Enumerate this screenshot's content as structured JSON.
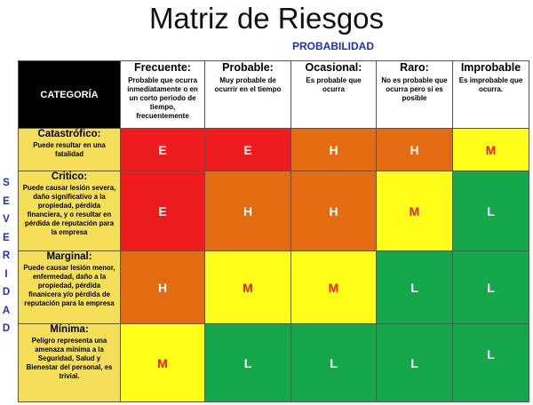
{
  "title": "Matriz de Riesgos",
  "probability_label": "PROBABILIDAD",
  "severity_letters": [
    "S",
    "E",
    "V",
    "E",
    "R",
    "I",
    "D",
    "A",
    "D"
  ],
  "category_header": "CATEGORÍA",
  "columns": [
    {
      "title": "Frecuente:",
      "desc": "Probable que ocurra inmediatamente o en un corto periodo de tiempo, frecuentemente"
    },
    {
      "title": "Probable:",
      "desc": "Muy probable de ocurrir en el tiempo"
    },
    {
      "title": "Ocasional:",
      "desc": "Es probable que ocurra"
    },
    {
      "title": "Raro:",
      "desc": "No es probable que ocurra pero si es posible"
    },
    {
      "title": "Improbable",
      "desc": "Es improbable que ocurra."
    }
  ],
  "rows": [
    {
      "title": "Catastrófico:",
      "desc": "Puede resultar en una fatalidad",
      "cells": [
        "E",
        "E",
        "H",
        "H",
        "M"
      ]
    },
    {
      "title": "Critico:",
      "desc": "Puede causar lesión severa, daño significativo a la propiedad, pérdida financiera, y o resultar en pérdida de reputación para la empresa",
      "cells": [
        "E",
        "H",
        "H",
        "M",
        "L"
      ]
    },
    {
      "title": "Marginal:",
      "desc": "Puede causar lesión menor, enfermedad, daño a la propiedad, pérdida finanicera y/o pérdida de reputación para la empresa",
      "cells": [
        "H",
        "M",
        "M",
        "L",
        "L"
      ]
    },
    {
      "title": "Mínima:",
      "desc": "Peligro representa una amenaza mínima a la Seguridad, Salud y Bienestar del personal, es trivial.",
      "cells": [
        "M",
        "L",
        "L",
        "L",
        "L"
      ]
    }
  ],
  "level_colors": {
    "E": "#ee1c1c",
    "H": "#e36c12",
    "M": "#ffff1a",
    "L": "#16a64c"
  }
}
